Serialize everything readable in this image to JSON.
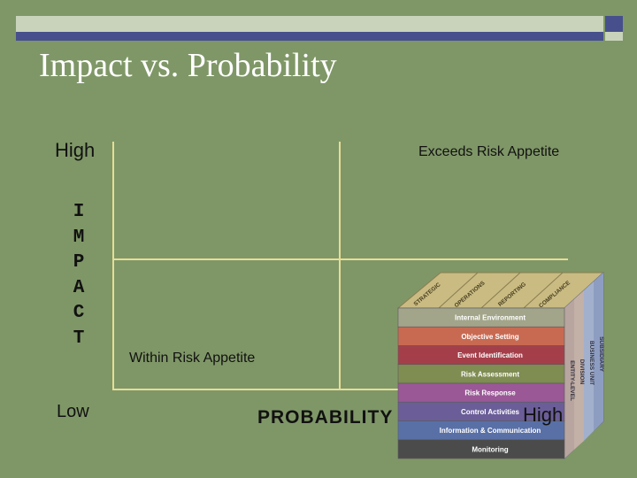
{
  "slide": {
    "title": "Impact vs. Probability",
    "y_high": "High",
    "y_low": "Low",
    "y_axis_letters": [
      "I",
      "M",
      "P",
      "A",
      "C",
      "T"
    ],
    "quadrant_top_right": "Exceeds Risk Appetite",
    "quadrant_bottom_left": "Within Risk Appetite",
    "x_axis_label": "PROBABILITY",
    "x_high": "High"
  },
  "cube": {
    "top_labels": [
      "STRATEGIC",
      "OPERATIONS",
      "REPORTING",
      "COMPLIANCE"
    ],
    "rows": [
      {
        "label": "Internal Environment",
        "color": "#a2a58a"
      },
      {
        "label": "Objective Setting",
        "color": "#c86a52"
      },
      {
        "label": "Event Identification",
        "color": "#a43f4a"
      },
      {
        "label": "Risk Assessment",
        "color": "#7f8c52"
      },
      {
        "label": "Risk Response",
        "color": "#9a5896"
      },
      {
        "label": "Control Activities",
        "color": "#6b5e98"
      },
      {
        "label": "Information & Communication",
        "color": "#5970a7"
      },
      {
        "label": "Monitoring",
        "color": "#4b4b4b"
      }
    ],
    "side_labels": [
      "ENTITY-LEVEL",
      "DIVISION",
      "BUSINESS UNIT",
      "SUBSIDIARY"
    ]
  }
}
